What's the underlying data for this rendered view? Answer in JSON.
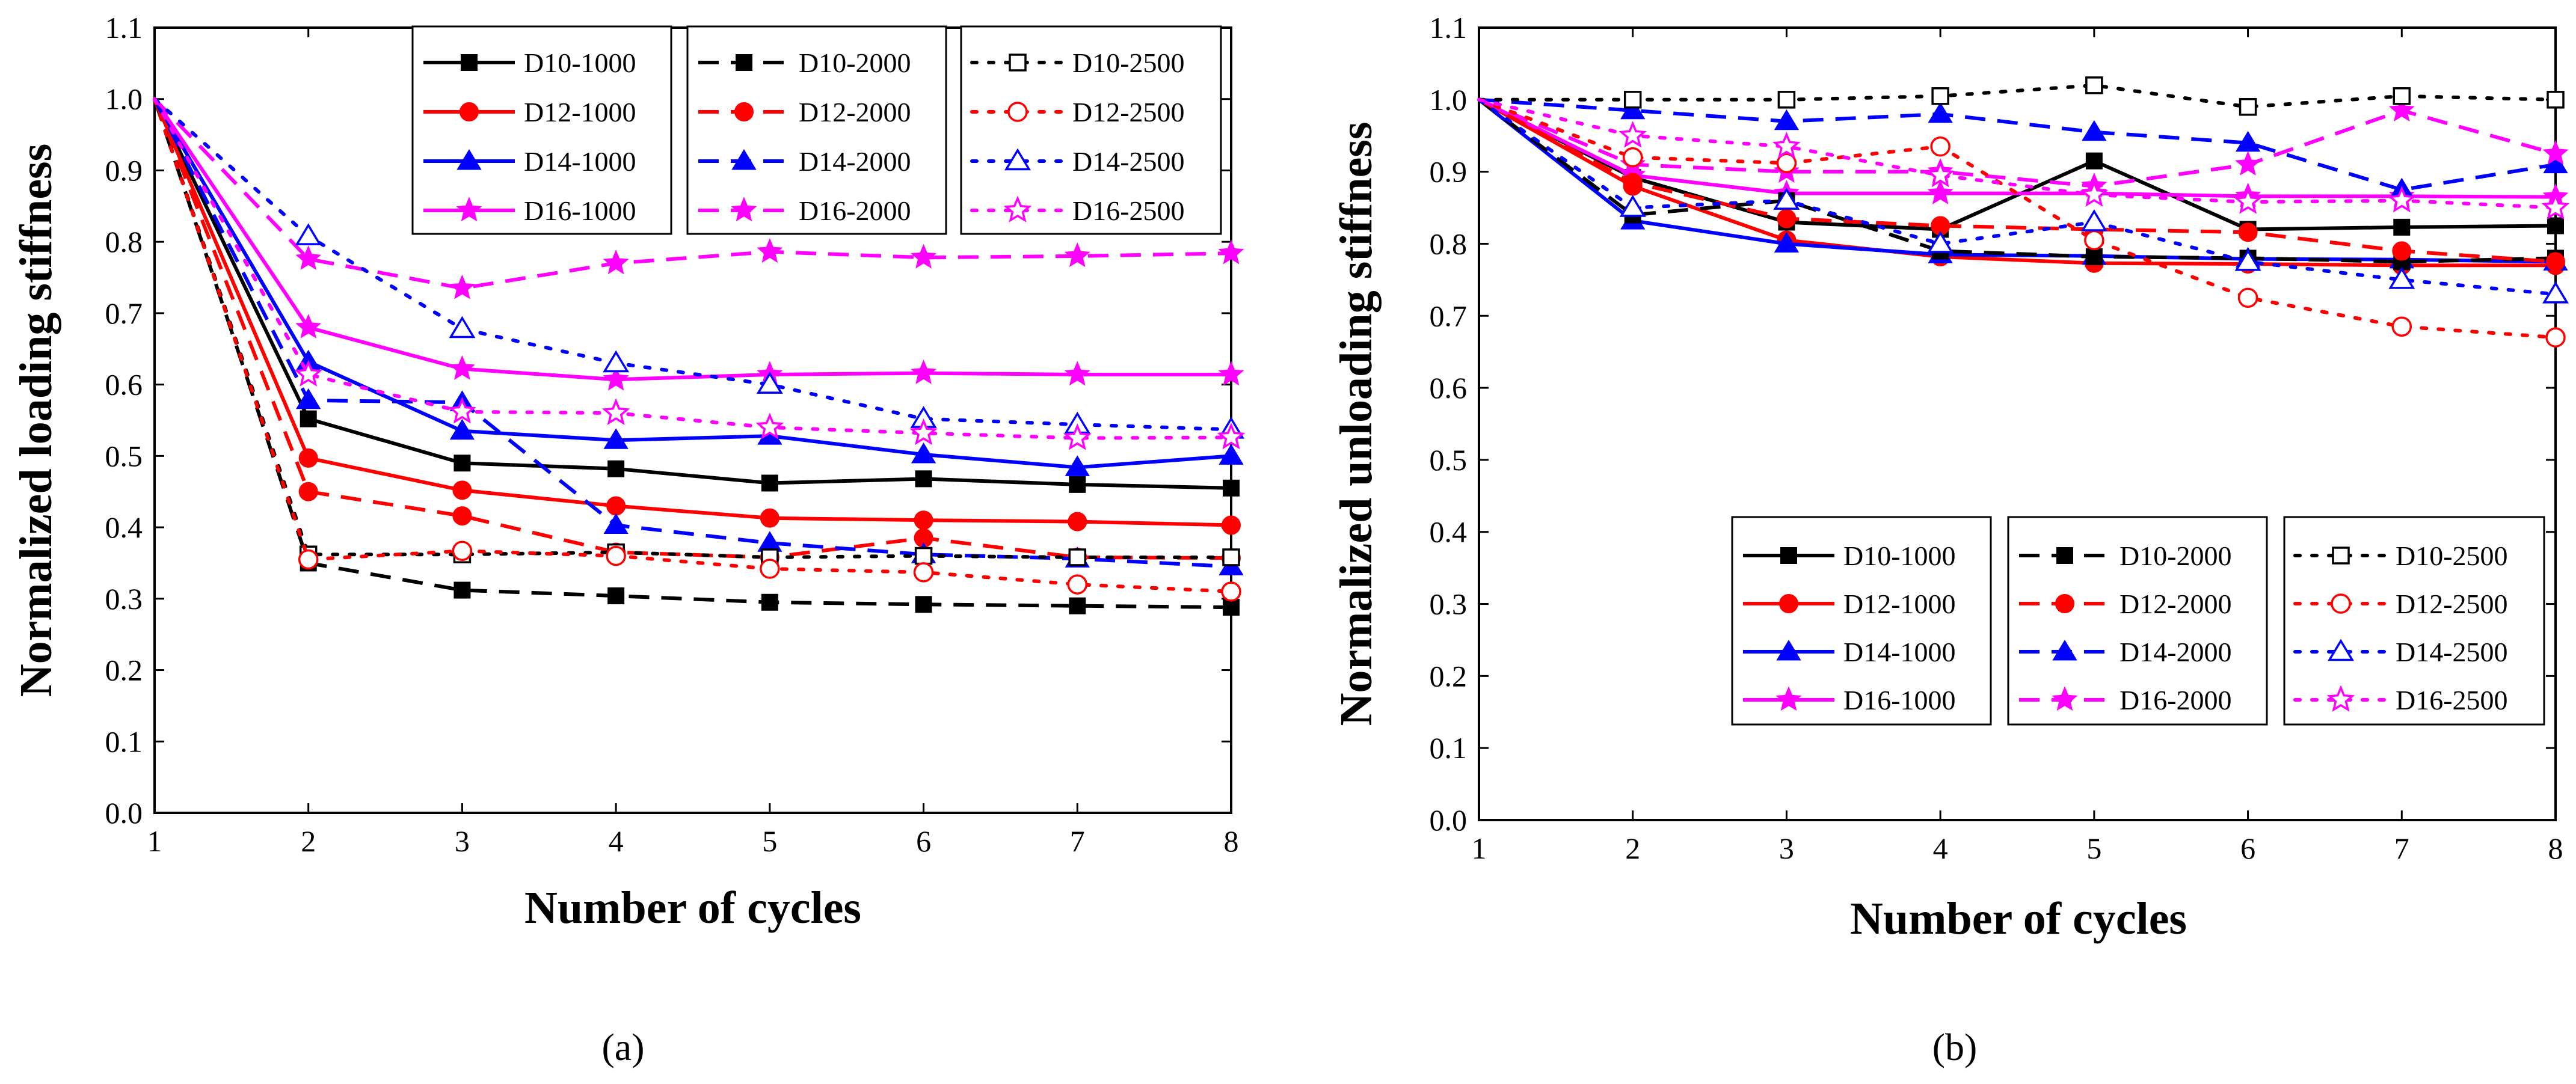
{
  "panels": [
    {
      "label": "(a)"
    },
    {
      "label": "(b)"
    }
  ],
  "chart_data": [
    {
      "type": "line",
      "panel": "(a)",
      "title": "",
      "xlabel": "Number of cycles",
      "ylabel": "Normalized loading stiffness",
      "xlim": [
        1,
        8
      ],
      "ylim": [
        0.0,
        1.1
      ],
      "xticks": [
        "1",
        "2",
        "3",
        "4",
        "5",
        "6",
        "7",
        "8"
      ],
      "yticks": [
        "0.0",
        "0.1",
        "0.2",
        "0.3",
        "0.4",
        "0.5",
        "0.6",
        "0.7",
        "0.8",
        "0.9",
        "1.0",
        "1.1"
      ],
      "grid": false,
      "legend_position": "top-right",
      "x": [
        1,
        2,
        3,
        4,
        5,
        6,
        7,
        8
      ],
      "series": [
        {
          "name": "D10-1000",
          "color": "#000000",
          "style": "solid",
          "marker": "filled-square",
          "values": [
            1.0,
            0.552,
            0.49,
            0.482,
            0.462,
            0.468,
            0.46,
            0.455
          ]
        },
        {
          "name": "D12-1000",
          "color": "#ff0000",
          "style": "solid",
          "marker": "filled-circle",
          "values": [
            1.0,
            0.497,
            0.452,
            0.43,
            0.413,
            0.41,
            0.408,
            0.403
          ]
        },
        {
          "name": "D14-1000",
          "color": "#0000ff",
          "style": "solid",
          "marker": "filled-triangle",
          "values": [
            1.0,
            0.632,
            0.535,
            0.522,
            0.528,
            0.502,
            0.484,
            0.5
          ]
        },
        {
          "name": "D16-1000",
          "color": "#ff00ff",
          "style": "solid",
          "marker": "filled-star",
          "values": [
            1.0,
            0.68,
            0.622,
            0.607,
            0.614,
            0.616,
            0.614,
            0.614
          ]
        },
        {
          "name": "D10-2000",
          "color": "#000000",
          "style": "dashed",
          "marker": "filled-square",
          "values": [
            1.0,
            0.35,
            0.312,
            0.304,
            0.295,
            0.292,
            0.29,
            0.288
          ]
        },
        {
          "name": "D12-2000",
          "color": "#ff0000",
          "style": "dashed",
          "marker": "filled-circle",
          "values": [
            1.0,
            0.45,
            0.416,
            0.365,
            0.358,
            0.385,
            0.358,
            0.357
          ]
        },
        {
          "name": "D14-2000",
          "color": "#0000ff",
          "style": "dashed",
          "marker": "filled-triangle",
          "values": [
            1.0,
            0.578,
            0.575,
            0.403,
            0.378,
            0.362,
            0.356,
            0.345
          ]
        },
        {
          "name": "D16-2000",
          "color": "#ff00ff",
          "style": "dashed",
          "marker": "filled-star",
          "values": [
            1.0,
            0.776,
            0.735,
            0.77,
            0.786,
            0.778,
            0.78,
            0.784
          ]
        },
        {
          "name": "D10-2500",
          "color": "#000000",
          "style": "dotted",
          "marker": "open-square",
          "values": [
            1.0,
            0.362,
            0.362,
            0.365,
            0.358,
            0.36,
            0.358,
            0.358
          ]
        },
        {
          "name": "D12-2500",
          "color": "#ff0000",
          "style": "dotted",
          "marker": "open-circle",
          "values": [
            1.0,
            0.355,
            0.367,
            0.36,
            0.342,
            0.337,
            0.32,
            0.31
          ]
        },
        {
          "name": "D14-2500",
          "color": "#0000ff",
          "style": "dotted",
          "marker": "open-triangle",
          "values": [
            1.0,
            0.808,
            0.678,
            0.63,
            0.6,
            0.552,
            0.544,
            0.537
          ]
        },
        {
          "name": "D16-2500",
          "color": "#ff00ff",
          "style": "dotted",
          "marker": "open-star",
          "values": [
            1.0,
            0.614,
            0.562,
            0.56,
            0.54,
            0.532,
            0.525,
            0.526
          ]
        }
      ]
    },
    {
      "type": "line",
      "panel": "(b)",
      "title": "",
      "xlabel": "Number of cycles",
      "ylabel": "Normalized unloading stiffness",
      "xlim": [
        1,
        8
      ],
      "ylim": [
        0.0,
        1.1
      ],
      "xticks": [
        "1",
        "2",
        "3",
        "4",
        "5",
        "6",
        "7",
        "8"
      ],
      "yticks": [
        "0.0",
        "0.1",
        "0.2",
        "0.3",
        "0.4",
        "0.5",
        "0.6",
        "0.7",
        "0.8",
        "0.9",
        "1.0",
        "1.1"
      ],
      "grid": false,
      "legend_position": "bottom-right",
      "x": [
        1,
        2,
        3,
        4,
        5,
        6,
        7,
        8
      ],
      "series": [
        {
          "name": "D10-1000",
          "color": "#000000",
          "style": "solid",
          "marker": "filled-square",
          "values": [
            1.0,
            0.892,
            0.83,
            0.82,
            0.915,
            0.82,
            0.823,
            0.825
          ]
        },
        {
          "name": "D12-1000",
          "color": "#ff0000",
          "style": "solid",
          "marker": "filled-circle",
          "values": [
            1.0,
            0.88,
            0.805,
            0.782,
            0.773,
            0.772,
            0.77,
            0.77
          ]
        },
        {
          "name": "D14-1000",
          "color": "#0000ff",
          "style": "solid",
          "marker": "filled-triangle",
          "values": [
            1.0,
            0.832,
            0.8,
            0.785,
            0.783,
            0.779,
            0.778,
            0.775
          ]
        },
        {
          "name": "D16-1000",
          "color": "#ff00ff",
          "style": "solid",
          "marker": "filled-star",
          "values": [
            1.0,
            0.895,
            0.87,
            0.87,
            0.87,
            0.866,
            0.866,
            0.865
          ]
        },
        {
          "name": "D10-2000",
          "color": "#000000",
          "style": "dashed",
          "marker": "filled-square",
          "values": [
            1.0,
            0.84,
            0.86,
            0.79,
            0.782,
            0.78,
            0.775,
            0.78
          ]
        },
        {
          "name": "D12-2000",
          "color": "#ff0000",
          "style": "dashed",
          "marker": "filled-circle",
          "values": [
            1.0,
            0.885,
            0.835,
            0.825,
            0.82,
            0.816,
            0.79,
            0.775
          ]
        },
        {
          "name": "D14-2000",
          "color": "#0000ff",
          "style": "dashed",
          "marker": "filled-triangle",
          "values": [
            1.0,
            0.985,
            0.97,
            0.98,
            0.955,
            0.94,
            0.875,
            0.91
          ]
        },
        {
          "name": "D16-2000",
          "color": "#ff00ff",
          "style": "dashed",
          "marker": "filled-star",
          "values": [
            1.0,
            0.91,
            0.9,
            0.9,
            0.88,
            0.91,
            0.985,
            0.925
          ]
        },
        {
          "name": "D10-2500",
          "color": "#000000",
          "style": "dotted",
          "marker": "open-square",
          "values": [
            1.0,
            1.0,
            1.0,
            1.005,
            1.02,
            0.99,
            1.005,
            1.0
          ]
        },
        {
          "name": "D12-2500",
          "color": "#ff0000",
          "style": "dotted",
          "marker": "open-circle",
          "values": [
            1.0,
            0.92,
            0.912,
            0.935,
            0.805,
            0.725,
            0.685,
            0.67
          ]
        },
        {
          "name": "D14-2500",
          "color": "#0000ff",
          "style": "dotted",
          "marker": "open-triangle",
          "values": [
            1.0,
            0.85,
            0.86,
            0.8,
            0.83,
            0.775,
            0.75,
            0.73
          ]
        },
        {
          "name": "D16-2500",
          "color": "#ff00ff",
          "style": "dotted",
          "marker": "open-star",
          "values": [
            1.0,
            0.95,
            0.935,
            0.895,
            0.868,
            0.858,
            0.86,
            0.85
          ]
        }
      ]
    }
  ]
}
